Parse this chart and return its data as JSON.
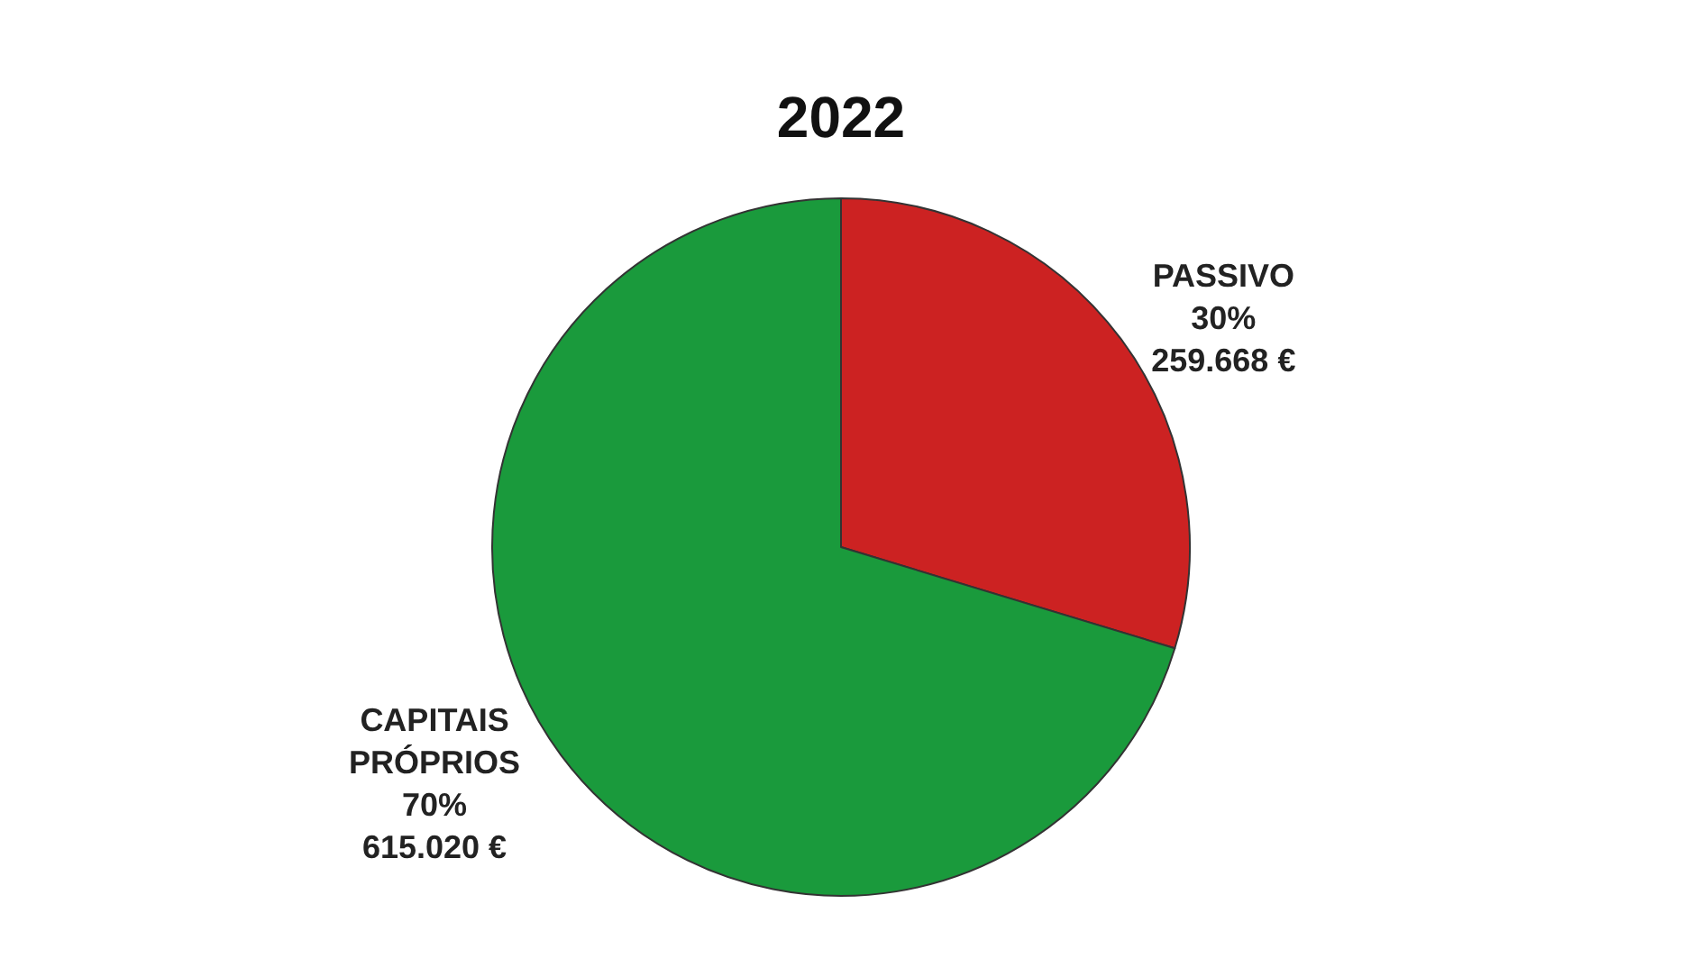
{
  "chart_data": {
    "type": "pie",
    "title": "2022",
    "categories": [
      "PASSIVO",
      "CAPITAIS\nPRÓPRIOS"
    ],
    "values": [
      259668,
      615020
    ],
    "value_labels": [
      "30%\n259.668 €",
      "70%\n615.020 €"
    ],
    "colors": [
      "#cc2222",
      "#1a9a3c"
    ]
  }
}
